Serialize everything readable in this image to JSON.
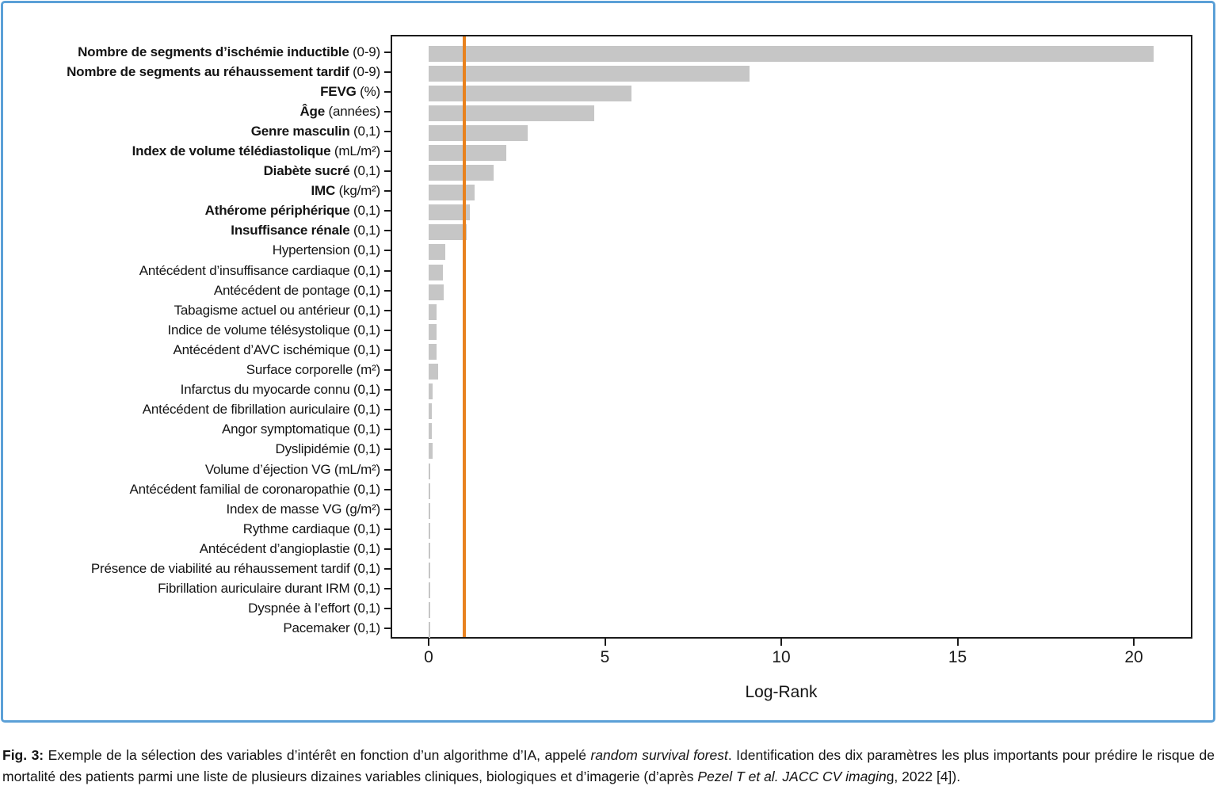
{
  "chart_data": {
    "type": "bar",
    "orientation": "horizontal",
    "title": "",
    "xlabel": "Log-Rank",
    "ylabel": "",
    "xlim": [
      0,
      21.6
    ],
    "xticks": [
      0,
      5,
      10,
      15,
      20
    ],
    "grid": false,
    "legend": "none",
    "bar_color": "#c6c6c6",
    "reference_line": {
      "value": 1,
      "color": "#e8821f"
    },
    "categories": [
      {
        "name": "Nombre de segments d’ischémie inductible",
        "unit": "(0-9)",
        "bold": true,
        "value": 20.55
      },
      {
        "name": "Nombre de segments au réhaussement tardif",
        "unit": "(0-9)",
        "bold": true,
        "value": 9.1
      },
      {
        "name": "FEVG",
        "unit": "(%)",
        "bold": true,
        "value": 5.75
      },
      {
        "name": "Âge",
        "unit": "(années)",
        "bold": true,
        "value": 4.7
      },
      {
        "name": "Genre masculin",
        "unit": "(0,1)",
        "bold": true,
        "value": 2.8
      },
      {
        "name": "Index de volume télédiastolique",
        "unit": "(mL/m²)",
        "bold": true,
        "value": 2.2
      },
      {
        "name": "Diabète sucré",
        "unit": "(0,1)",
        "bold": true,
        "value": 1.85
      },
      {
        "name": "IMC",
        "unit": "(kg/m²)",
        "bold": true,
        "value": 1.3
      },
      {
        "name": "Athérome périphérique",
        "unit": "(0,1)",
        "bold": true,
        "value": 1.17
      },
      {
        "name": "Insuffisance rénale",
        "unit": "(0,1)",
        "bold": true,
        "value": 1.07
      },
      {
        "name": "Hypertension",
        "unit": "(0,1)",
        "bold": false,
        "value": 0.48
      },
      {
        "name": "Antécédent d’insuffisance cardiaque",
        "unit": "(0,1)",
        "bold": false,
        "value": 0.4
      },
      {
        "name": "Antécédent de pontage",
        "unit": "(0,1)",
        "bold": false,
        "value": 0.42
      },
      {
        "name": "Tabagisme actuel ou antérieur",
        "unit": "(0,1)",
        "bold": false,
        "value": 0.22
      },
      {
        "name": "Indice de volume télésystolique",
        "unit": "(0,1)",
        "bold": false,
        "value": 0.22
      },
      {
        "name": "Antécédent d’AVC ischémique",
        "unit": "(0,1)",
        "bold": false,
        "value": 0.22
      },
      {
        "name": "Surface corporelle",
        "unit": "(m²)",
        "bold": false,
        "value": 0.27
      },
      {
        "name": "Infarctus du myocarde connu",
        "unit": "(0,1)",
        "bold": false,
        "value": 0.1
      },
      {
        "name": "Antécédent de fibrillation auriculaire",
        "unit": "(0,1)",
        "bold": false,
        "value": 0.08
      },
      {
        "name": "Angor symptomatique",
        "unit": "(0,1)",
        "bold": false,
        "value": 0.08
      },
      {
        "name": "Dyslipidémie",
        "unit": "(0,1)",
        "bold": false,
        "value": 0.1
      },
      {
        "name": "Volume d’éjection VG",
        "unit": "(mL/m²)",
        "bold": false,
        "value": 0.05
      },
      {
        "name": "Antécédent familial de coronaropathie",
        "unit": "(0,1)",
        "bold": false,
        "value": 0.05
      },
      {
        "name": "Index de masse VG",
        "unit": "(g/m²)",
        "bold": false,
        "value": 0.05
      },
      {
        "name": "Rythme cardiaque",
        "unit": "(0,1)",
        "bold": false,
        "value": 0.05
      },
      {
        "name": "Antécédent d’angioplastie",
        "unit": "(0,1)",
        "bold": false,
        "value": 0.05
      },
      {
        "name": "Présence de viabilité au réhaussement tardif",
        "unit": "(0,1)",
        "bold": false,
        "value": 0.05
      },
      {
        "name": "Fibrillation auriculaire durant IRM",
        "unit": "(0,1)",
        "bold": false,
        "value": 0.05
      },
      {
        "name": "Dyspnée à l’effort",
        "unit": "(0,1)",
        "bold": false,
        "value": 0.05
      },
      {
        "name": "Pacemaker",
        "unit": "(0,1)",
        "bold": false,
        "value": 0.05
      }
    ]
  },
  "axis": {
    "x_tick_labels": [
      "0",
      "5",
      "10",
      "15",
      "20"
    ],
    "x_title": "Log-Rank"
  },
  "caption": {
    "segments": [
      {
        "text": "Fig. 3:",
        "style": "bold"
      },
      {
        "text": " Exemple de la sélection des variables d’intérêt en fonction d’un algorithme d’IA, appelé ",
        "style": "normal"
      },
      {
        "text": "random survival forest",
        "style": "italic"
      },
      {
        "text": ". Identification des dix paramètres les plus importants pour prédire le risque de mortalité des patients parmi une liste de plusieurs dizaines variables cliniques, biologiques et d’imagerie (d’après ",
        "style": "normal"
      },
      {
        "text": "Pezel T et al. JACC CV imagin",
        "style": "italic"
      },
      {
        "text": "g, 2022 [4]).",
        "style": "normal"
      }
    ]
  },
  "colors": {
    "figure_border": "#5ba0d7",
    "plot_border": "#1b1b1b",
    "bar": "#c6c6c6",
    "reference_line": "#e8821f",
    "text": "#141414"
  }
}
